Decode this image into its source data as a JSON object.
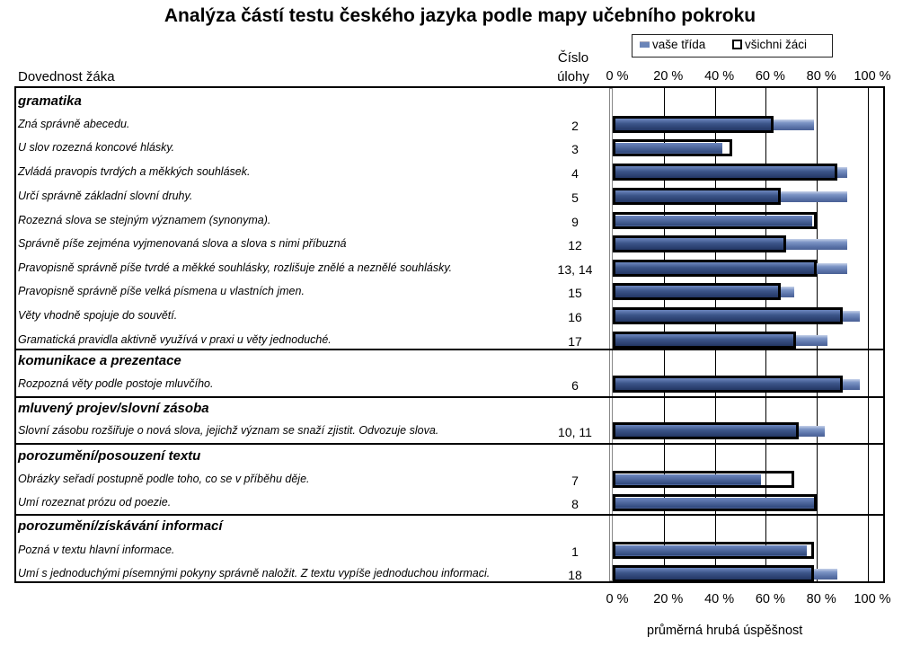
{
  "chart_data": {
    "type": "bar",
    "orientation": "horizontal",
    "title": "Analýza částí testu českého jazyka podle mapy učebního pokroku",
    "row_header": "Dovednost žáka",
    "number_header": [
      "Číslo",
      "úlohy"
    ],
    "xlabel": "průměrná hrubá úspěšnost",
    "xlim": [
      0,
      100
    ],
    "ticks": [
      "0 %",
      "20 %",
      "40 %",
      "60 %",
      "80 %",
      "100 %"
    ],
    "grid": true,
    "legend_position": "top-right",
    "series": [
      {
        "name": "vaše třída",
        "color": "#6a84b8"
      },
      {
        "name": "všichni žáci",
        "color": "#000000"
      }
    ],
    "groups": [
      {
        "category": "gramatika",
        "rows": [
          {
            "skill": "Zná správně abecedu.",
            "task": "2",
            "class": 79,
            "all": 63
          },
          {
            "skill": "U slov rozezná koncové hlásky.",
            "task": "3",
            "class": 43,
            "all": 47
          },
          {
            "skill": "Zvládá pravopis tvrdých a měkkých souhlásek.",
            "task": "4",
            "class": 92,
            "all": 88
          },
          {
            "skill": "Určí správně základní slovní druhy.",
            "task": "5",
            "class": 92,
            "all": 66
          },
          {
            "skill": "Rozezná slova se stejným významem (synonyma).",
            "task": "9",
            "class": 78,
            "all": 80
          },
          {
            "skill": "Správně píše zejména vyjmenovaná slova a slova s nimi příbuzná",
            "task": "12",
            "class": 92,
            "all": 68
          },
          {
            "skill": "Pravopisně správně píše tvrdé a měkké souhlásky, rozlišuje znělé a neznělé souhlásky.",
            "task": "13, 14",
            "class": 92,
            "all": 80
          },
          {
            "skill": "Pravopisně správně píše velká písmena u vlastních jmen.",
            "task": "15",
            "class": 71,
            "all": 66
          },
          {
            "skill": "Věty vhodně spojuje do souvětí.",
            "task": "16",
            "class": 97,
            "all": 90
          },
          {
            "skill": "Gramatická pravidla aktivně využívá v praxi u věty jednoduché.",
            "task": "17",
            "class": 84,
            "all": 72
          }
        ]
      },
      {
        "category": "komunikace a prezentace",
        "rows": [
          {
            "skill": "Rozpozná věty podle postoje mluvčího.",
            "task": "6",
            "class": 97,
            "all": 90
          }
        ]
      },
      {
        "category": "mluvený projev/slovní zásoba",
        "rows": [
          {
            "skill": "Slovní zásobu rozšiřuje o nová slova, jejichž význam se snaží zjistit. Odvozuje slova.",
            "task": "10, 11",
            "class": 83,
            "all": 73
          }
        ]
      },
      {
        "category": "porozumění/posouzení textu",
        "rows": [
          {
            "skill": "Obrázky seřadí postupně podle toho, co se v příběhu děje.",
            "task": "7",
            "class": 58,
            "all": 71
          },
          {
            "skill": "Umí rozeznat prózu od poezie.",
            "task": "8",
            "class": 79,
            "all": 80
          }
        ]
      },
      {
        "category": "porozumění/získávání informací",
        "rows": [
          {
            "skill": "Pozná v textu hlavní informace.",
            "task": "1",
            "class": 76,
            "all": 79
          },
          {
            "skill": "Umí s jednoduchými písemnými pokyny správně naložit. Z textu vypíše jednoduchou informaci.",
            "task": "18",
            "class": 88,
            "all": 79
          }
        ]
      }
    ]
  }
}
